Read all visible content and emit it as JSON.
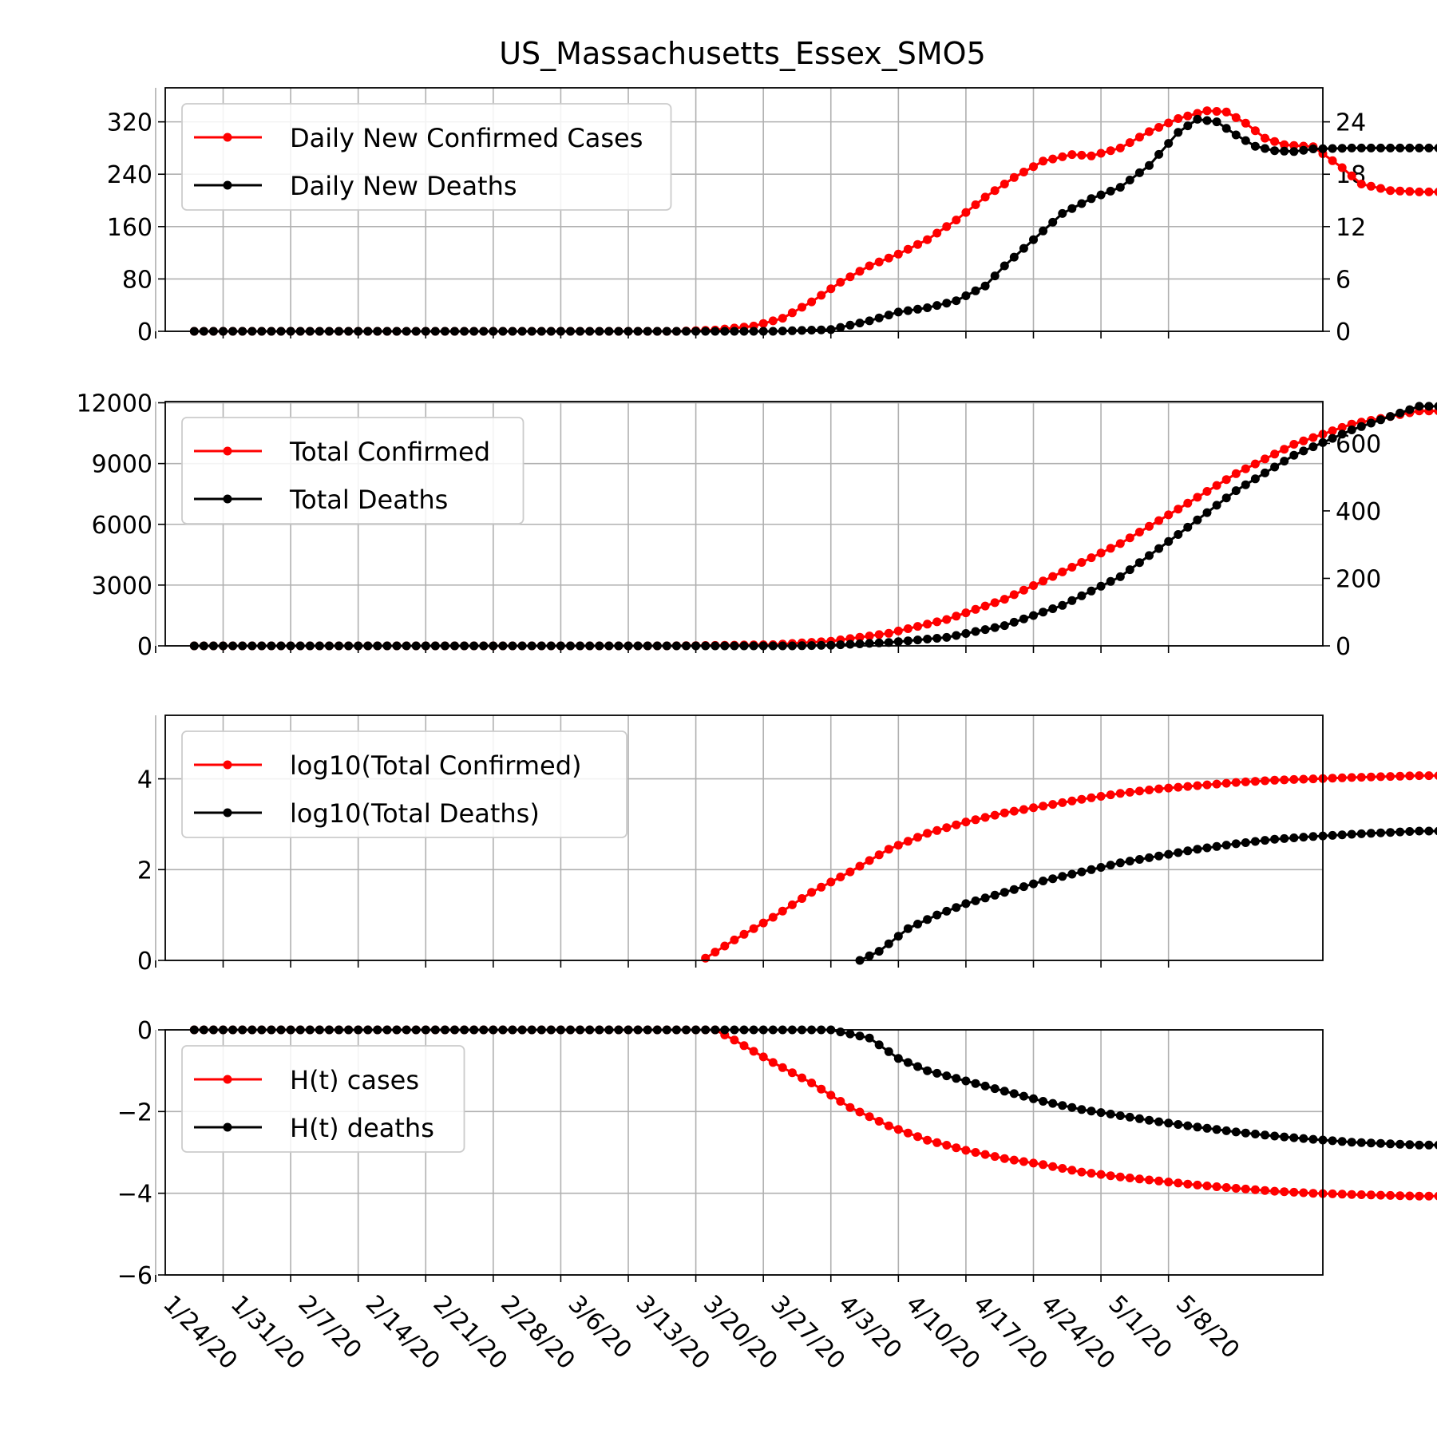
{
  "figure": {
    "title": "US_Massachusetts_Essex_SMO5",
    "x_tick_labels": [
      "1/24/20",
      "1/31/20",
      "2/7/20",
      "2/14/20",
      "2/21/20",
      "2/28/20",
      "3/6/20",
      "3/13/20",
      "3/20/20",
      "3/27/20",
      "4/3/20",
      "4/10/20",
      "4/17/20",
      "4/24/20",
      "5/1/20",
      "5/8/20"
    ]
  },
  "chart_data": [
    {
      "type": "line",
      "panel": "daily",
      "x_start": "2020-01-22",
      "x_end": "2020-05-11",
      "xlim_days": [
        -5,
        115
      ],
      "ylim": [
        0,
        372
      ],
      "yticks": [
        0,
        80,
        160,
        240,
        320
      ],
      "y2lim": [
        0,
        27.9
      ],
      "y2ticks": [
        0,
        6,
        12,
        18,
        24
      ],
      "grid": true,
      "legend_position": "top-left",
      "series": [
        {
          "name": "Daily New Confirmed Cases",
          "color": "#ff0000",
          "axis": "left",
          "knots": [
            [
              0,
              0
            ],
            [
              50,
              0
            ],
            [
              54,
              2
            ],
            [
              58,
              8
            ],
            [
              61,
              20
            ],
            [
              64,
              45
            ],
            [
              67,
              75
            ],
            [
              70,
              100
            ],
            [
              73,
              118
            ],
            [
              76,
              140
            ],
            [
              79,
              170
            ],
            [
              82,
              205
            ],
            [
              85,
              235
            ],
            [
              88,
              260
            ],
            [
              91,
              270
            ],
            [
              93,
              268
            ],
            [
              96,
              280
            ],
            [
              99,
              305
            ],
            [
              102,
              325
            ],
            [
              105,
              337
            ],
            [
              107,
              335
            ],
            [
              109,
              318
            ],
            [
              111,
              295
            ],
            [
              113,
              285
            ],
            [
              116,
              282
            ],
            [
              119,
              250
            ],
            [
              121,
              225
            ],
            [
              124,
              215
            ],
            [
              127,
              213
            ]
          ]
        },
        {
          "name": "Daily New Deaths",
          "color": "#000000",
          "axis": "right",
          "knots": [
            [
              0,
              0
            ],
            [
              60,
              0
            ],
            [
              66,
              0.2
            ],
            [
              70,
              1.2
            ],
            [
              73,
              2.2
            ],
            [
              76,
              2.7
            ],
            [
              79,
              3.5
            ],
            [
              82,
              5.2
            ],
            [
              84,
              7.5
            ],
            [
              87,
              10.5
            ],
            [
              90,
              13.5
            ],
            [
              93,
              15.2
            ],
            [
              96,
              16.5
            ],
            [
              99,
              19
            ],
            [
              102,
              22.8
            ],
            [
              104,
              24.3
            ],
            [
              106,
              24
            ],
            [
              108,
              22.5
            ],
            [
              110,
              21.2
            ],
            [
              112,
              20.7
            ],
            [
              114,
              20.6
            ],
            [
              116,
              20.9
            ],
            [
              120,
              21
            ],
            [
              124,
              21
            ],
            [
              127,
              21
            ]
          ]
        }
      ]
    },
    {
      "type": "line",
      "panel": "total",
      "ylim": [
        0,
        12060
      ],
      "yticks": [
        0,
        3000,
        6000,
        9000,
        12000
      ],
      "y2lim": [
        0,
        724
      ],
      "y2ticks": [
        0,
        200,
        400,
        600
      ],
      "grid": true,
      "legend_position": "top-left",
      "series": [
        {
          "name": "Total Confirmed",
          "color": "#ff0000",
          "axis": "left",
          "knots": [
            [
              0,
              0
            ],
            [
              50,
              2
            ],
            [
              60,
              60
            ],
            [
              66,
              230
            ],
            [
              72,
              620
            ],
            [
              78,
              1300
            ],
            [
              84,
              2300
            ],
            [
              90,
              3650
            ],
            [
              96,
              5050
            ],
            [
              102,
              6750
            ],
            [
              108,
              8500
            ],
            [
              114,
              9950
            ],
            [
              120,
              10950
            ],
            [
              127,
              11600
            ]
          ]
        },
        {
          "name": "Total Deaths",
          "color": "#000000",
          "axis": "right",
          "knots": [
            [
              0,
              0
            ],
            [
              62,
              0
            ],
            [
              66,
              2
            ],
            [
              72,
              10
            ],
            [
              78,
              25
            ],
            [
              84,
              60
            ],
            [
              90,
              120
            ],
            [
              96,
              205
            ],
            [
              102,
              330
            ],
            [
              108,
              460
            ],
            [
              114,
              565
            ],
            [
              120,
              640
            ],
            [
              127,
              710
            ]
          ]
        }
      ]
    },
    {
      "type": "line",
      "panel": "log10",
      "ylim": [
        0,
        5.4
      ],
      "yticks": [
        0,
        2,
        4
      ],
      "grid": true,
      "legend_position": "top-left",
      "series": [
        {
          "name": "log10(Total Confirmed)",
          "color": "#ff0000",
          "axis": "left",
          "start_day": 53,
          "knots": [
            [
              53,
              0.05
            ],
            [
              56,
              0.45
            ],
            [
              60,
              0.95
            ],
            [
              64,
              1.5
            ],
            [
              68,
              1.95
            ],
            [
              72,
              2.45
            ],
            [
              76,
              2.8
            ],
            [
              80,
              3.05
            ],
            [
              84,
              3.25
            ],
            [
              88,
              3.4
            ],
            [
              92,
              3.55
            ],
            [
              96,
              3.68
            ],
            [
              100,
              3.78
            ],
            [
              104,
              3.85
            ],
            [
              108,
              3.92
            ],
            [
              112,
              3.97
            ],
            [
              116,
              4.0
            ],
            [
              120,
              4.03
            ],
            [
              127,
              4.07
            ]
          ]
        },
        {
          "name": "log10(Total Deaths)",
          "color": "#000000",
          "axis": "left",
          "start_day": 69,
          "knots": [
            [
              69,
              0.0
            ],
            [
              71,
              0.2
            ],
            [
              74,
              0.7
            ],
            [
              77,
              1.0
            ],
            [
              80,
              1.25
            ],
            [
              84,
              1.5
            ],
            [
              88,
              1.75
            ],
            [
              92,
              1.95
            ],
            [
              96,
              2.15
            ],
            [
              100,
              2.3
            ],
            [
              104,
              2.45
            ],
            [
              108,
              2.57
            ],
            [
              112,
              2.67
            ],
            [
              116,
              2.73
            ],
            [
              120,
              2.78
            ],
            [
              127,
              2.85
            ]
          ]
        }
      ]
    },
    {
      "type": "line",
      "panel": "entropy",
      "ylim": [
        -6,
        0
      ],
      "yticks": [
        -6,
        -4,
        -2,
        0
      ],
      "ytick_labels": [
        "−6",
        "−4",
        "−2",
        "0"
      ],
      "grid": true,
      "legend_position": "top-left",
      "series": [
        {
          "name": "H(t) cases",
          "color": "#ff0000",
          "axis": "left",
          "knots": [
            [
              0,
              0
            ],
            [
              54,
              0
            ],
            [
              56,
              -0.25
            ],
            [
              60,
              -0.8
            ],
            [
              64,
              -1.3
            ],
            [
              68,
              -1.9
            ],
            [
              72,
              -2.35
            ],
            [
              76,
              -2.7
            ],
            [
              80,
              -2.95
            ],
            [
              84,
              -3.15
            ],
            [
              88,
              -3.3
            ],
            [
              92,
              -3.48
            ],
            [
              96,
              -3.6
            ],
            [
              100,
              -3.7
            ],
            [
              104,
              -3.8
            ],
            [
              108,
              -3.88
            ],
            [
              112,
              -3.95
            ],
            [
              116,
              -4.0
            ],
            [
              120,
              -4.03
            ],
            [
              127,
              -4.07
            ]
          ]
        },
        {
          "name": "H(t) deaths",
          "color": "#000000",
          "axis": "left",
          "knots": [
            [
              0,
              0
            ],
            [
              63,
              0
            ],
            [
              66,
              0
            ],
            [
              70,
              -0.2
            ],
            [
              73,
              -0.7
            ],
            [
              76,
              -1.0
            ],
            [
              80,
              -1.25
            ],
            [
              84,
              -1.5
            ],
            [
              88,
              -1.75
            ],
            [
              92,
              -1.95
            ],
            [
              96,
              -2.1
            ],
            [
              100,
              -2.25
            ],
            [
              104,
              -2.38
            ],
            [
              108,
              -2.5
            ],
            [
              112,
              -2.6
            ],
            [
              116,
              -2.68
            ],
            [
              120,
              -2.75
            ],
            [
              127,
              -2.82
            ]
          ]
        }
      ]
    }
  ]
}
